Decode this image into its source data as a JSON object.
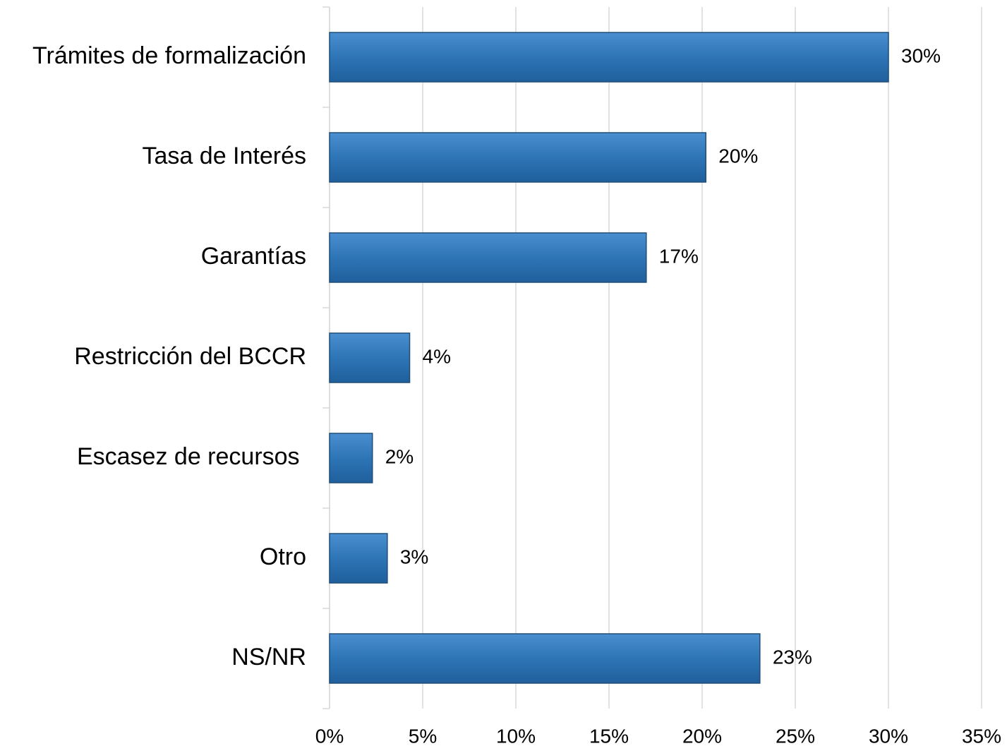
{
  "chart_data": {
    "type": "hbar",
    "categories": [
      "Trámites de formalización",
      "Tasa de Interés",
      "Garantías",
      "Restricción del BCCR",
      "Escasez de recursos ",
      "Otro",
      "NS/NR"
    ],
    "values": [
      30,
      20.2,
      17,
      4.3,
      2.3,
      3.1,
      23.1
    ],
    "value_labels": [
      "30%",
      "20%",
      "17%",
      "4%",
      "2%",
      "3%",
      "23%"
    ],
    "color": "#2e75b6",
    "xlim": [
      0,
      35
    ],
    "xticks": [
      {
        "value": 0,
        "label": "0%"
      },
      {
        "value": 5,
        "label": "5%"
      },
      {
        "value": 10,
        "label": "10%"
      },
      {
        "value": 15,
        "label": "15%"
      },
      {
        "value": 20,
        "label": "20%"
      },
      {
        "value": 25,
        "label": "25%"
      },
      {
        "value": 30,
        "label": "30%"
      },
      {
        "value": 35,
        "label": "35%"
      }
    ],
    "grid": true
  }
}
